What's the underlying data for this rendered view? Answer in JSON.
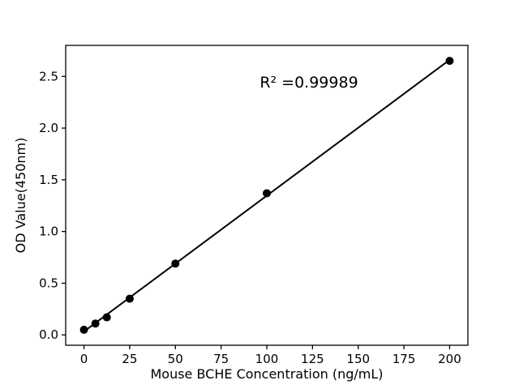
{
  "chart_data": {
    "type": "scatter",
    "title": "",
    "xlabel": "Mouse BCHE Concentration (ng/mL)",
    "ylabel": "OD Value(450nm)",
    "annotation": "R² =0.99989",
    "points": {
      "x": [
        0,
        6.25,
        12.5,
        25,
        50,
        100,
        200
      ],
      "y": [
        0.05,
        0.11,
        0.17,
        0.35,
        0.69,
        1.37,
        2.65
      ]
    },
    "trendline": {
      "x": [
        0,
        200
      ],
      "y": [
        0.033,
        2.66
      ]
    },
    "xticks": {
      "values": [
        0,
        25,
        50,
        75,
        100,
        125,
        150,
        175,
        200
      ],
      "labels": [
        "0",
        "25",
        "50",
        "75",
        "100",
        "125",
        "150",
        "175",
        "200"
      ]
    },
    "yticks": {
      "values": [
        0.0,
        0.5,
        1.0,
        1.5,
        2.0,
        2.5
      ],
      "labels": [
        "0.0",
        "0.5",
        "1.0",
        "1.5",
        "2.0",
        "2.5"
      ]
    },
    "xlim": [
      -10,
      210
    ],
    "ylim": [
      -0.1,
      2.8
    ],
    "grid": false,
    "legend_position": "none",
    "colors": {
      "marker": "#000000",
      "line": "#000000",
      "axis": "#000000",
      "background": "#ffffff"
    },
    "marker_diameter_px": 10
  }
}
